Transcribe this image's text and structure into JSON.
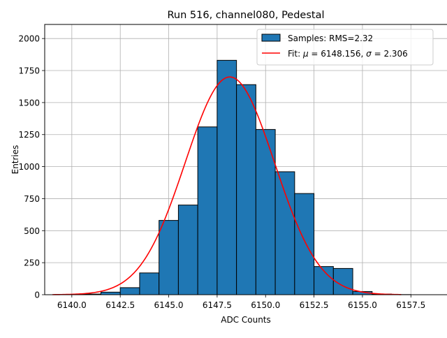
{
  "chart_data": {
    "type": "bar",
    "title": "Run 516, channel080, Pedestal",
    "xlabel": "ADC Counts",
    "ylabel": "Entries",
    "xlim": [
      6138.6,
      6159.4
    ],
    "ylim": [
      0,
      2110
    ],
    "grid": true,
    "legend_position": "top-right",
    "x_ticks": [
      6140.0,
      6142.5,
      6145.0,
      6147.5,
      6150.0,
      6152.5,
      6155.0,
      6157.5
    ],
    "x_tick_labels": [
      "6140.0",
      "6142.5",
      "6145.0",
      "6147.5",
      "6150.0",
      "6152.5",
      "6155.0",
      "6157.5"
    ],
    "y_ticks": [
      0,
      250,
      500,
      750,
      1000,
      1250,
      1500,
      1750,
      2000
    ],
    "y_tick_labels": [
      "0",
      "250",
      "500",
      "750",
      "1000",
      "1250",
      "1500",
      "1750",
      "2000"
    ],
    "histogram": {
      "name": "Samples: RMS=2.32",
      "color": "#1f77b4",
      "edge_color": "#000000",
      "bin_edges": [
        6139.5,
        6140.5,
        6141.5,
        6142.5,
        6143.5,
        6144.5,
        6145.5,
        6146.5,
        6147.5,
        6148.5,
        6149.5,
        6150.5,
        6151.5,
        6152.5,
        6153.5,
        6154.5,
        6155.5,
        6156.5,
        6157.5,
        6158.5
      ],
      "counts": [
        1,
        5,
        20,
        55,
        170,
        580,
        700,
        1310,
        1830,
        1640,
        1290,
        960,
        790,
        220,
        205,
        25,
        5,
        1,
        0
      ]
    },
    "fit": {
      "name": "Fit: $\\mu$ = 6148.156, $\\sigma$ = 2.306",
      "legend_prefix": "Fit: ",
      "mu_symbol": "μ",
      "mu_text": " = 6148.156, ",
      "sigma_symbol": "σ",
      "sigma_text": " = 2.306",
      "color": "#ff0000",
      "mu": 6148.156,
      "sigma": 2.306,
      "amplitude": 1700,
      "x_range": [
        6139.0,
        6157.0
      ]
    }
  }
}
